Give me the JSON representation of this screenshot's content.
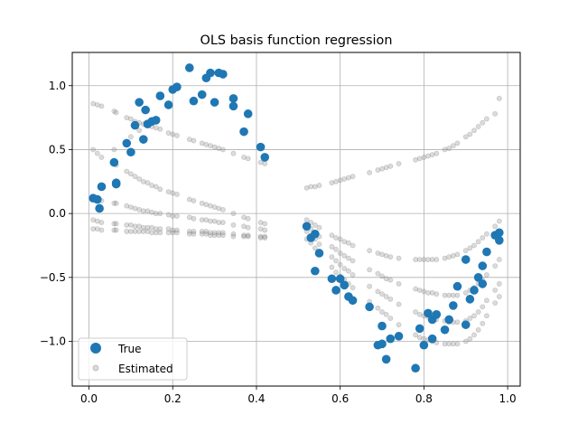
{
  "chart_data": {
    "type": "scatter",
    "title": "OLS basis function regression",
    "xlabel": "",
    "ylabel": "",
    "xlim": [
      -0.04,
      1.03
    ],
    "ylim": [
      -1.35,
      1.26
    ],
    "xticks": [
      0.0,
      0.2,
      0.4,
      0.6,
      0.8,
      1.0
    ],
    "yticks": [
      -1.0,
      -0.5,
      0.0,
      0.5,
      1.0
    ],
    "xtick_labels": [
      "0.0",
      "0.2",
      "0.4",
      "0.6",
      "0.8",
      "1.0"
    ],
    "ytick_labels": [
      "−1.0",
      "−0.5",
      "0.0",
      "0.5",
      "1.0"
    ],
    "grid": true,
    "legend_position": "lower-left",
    "series": [
      {
        "name": "True",
        "color": "#1f77b4",
        "marker": "circle-large",
        "x": [
          0.01,
          0.02,
          0.025,
          0.03,
          0.06,
          0.065,
          0.065,
          0.09,
          0.1,
          0.11,
          0.12,
          0.13,
          0.135,
          0.14,
          0.15,
          0.16,
          0.17,
          0.19,
          0.2,
          0.21,
          0.24,
          0.25,
          0.27,
          0.28,
          0.29,
          0.3,
          0.31,
          0.32,
          0.345,
          0.345,
          0.37,
          0.38,
          0.41,
          0.42,
          0.52,
          0.53,
          0.54,
          0.55,
          0.54,
          0.58,
          0.59,
          0.6,
          0.61,
          0.62,
          0.63,
          0.67,
          0.69,
          0.7,
          0.7,
          0.71,
          0.72,
          0.74,
          0.78,
          0.79,
          0.8,
          0.81,
          0.82,
          0.82,
          0.83,
          0.85,
          0.86,
          0.87,
          0.88,
          0.9,
          0.9,
          0.91,
          0.92,
          0.93,
          0.94,
          0.94,
          0.95,
          0.97,
          0.98,
          0.98
        ],
        "y": [
          0.12,
          0.11,
          0.04,
          0.21,
          0.4,
          0.23,
          0.24,
          0.55,
          0.48,
          0.69,
          0.87,
          0.58,
          0.81,
          0.7,
          0.72,
          0.73,
          0.92,
          0.85,
          0.97,
          0.99,
          1.14,
          0.88,
          0.93,
          1.06,
          1.1,
          0.87,
          1.1,
          1.09,
          0.84,
          0.9,
          0.64,
          0.78,
          0.52,
          0.44,
          -0.1,
          -0.19,
          -0.45,
          -0.31,
          -0.16,
          -0.51,
          -0.6,
          -0.51,
          -0.56,
          -0.65,
          -0.68,
          -0.73,
          -1.03,
          -0.88,
          -1.02,
          -1.14,
          -0.98,
          -0.96,
          -1.21,
          -0.9,
          -1.03,
          -0.78,
          -0.98,
          -0.83,
          -0.79,
          -0.91,
          -0.83,
          -0.72,
          -0.57,
          -0.87,
          -0.36,
          -0.67,
          -0.6,
          -0.5,
          -0.41,
          -0.55,
          -0.3,
          -0.17,
          -0.21,
          -0.15
        ]
      },
      {
        "name": "Estimated",
        "color": "#888888",
        "marker": "circle-small",
        "x": [
          0.01,
          0.01,
          0.01,
          0.01,
          0.01,
          0.02,
          0.02,
          0.02,
          0.02,
          0.02,
          0.03,
          0.03,
          0.03,
          0.03,
          0.03,
          0.03,
          0.06,
          0.06,
          0.06,
          0.06,
          0.06,
          0.06,
          0.065,
          0.065,
          0.065,
          0.065,
          0.065,
          0.09,
          0.09,
          0.09,
          0.09,
          0.09,
          0.1,
          0.1,
          0.1,
          0.1,
          0.1,
          0.1,
          0.11,
          0.11,
          0.11,
          0.11,
          0.11,
          0.12,
          0.12,
          0.12,
          0.12,
          0.12,
          0.12,
          0.13,
          0.13,
          0.13,
          0.13,
          0.13,
          0.14,
          0.14,
          0.14,
          0.14,
          0.14,
          0.15,
          0.15,
          0.15,
          0.15,
          0.15,
          0.16,
          0.16,
          0.16,
          0.16,
          0.16,
          0.17,
          0.17,
          0.17,
          0.17,
          0.17,
          0.19,
          0.19,
          0.19,
          0.19,
          0.19,
          0.2,
          0.2,
          0.2,
          0.2,
          0.2,
          0.21,
          0.21,
          0.21,
          0.21,
          0.21,
          0.24,
          0.24,
          0.24,
          0.24,
          0.24,
          0.25,
          0.25,
          0.25,
          0.25,
          0.25,
          0.27,
          0.27,
          0.27,
          0.27,
          0.27,
          0.28,
          0.28,
          0.28,
          0.28,
          0.28,
          0.29,
          0.29,
          0.29,
          0.29,
          0.29,
          0.3,
          0.3,
          0.3,
          0.3,
          0.3,
          0.31,
          0.31,
          0.31,
          0.31,
          0.31,
          0.32,
          0.32,
          0.32,
          0.32,
          0.32,
          0.345,
          0.345,
          0.345,
          0.345,
          0.345,
          0.37,
          0.37,
          0.37,
          0.37,
          0.37,
          0.38,
          0.38,
          0.38,
          0.38,
          0.38,
          0.41,
          0.41,
          0.41,
          0.41,
          0.41,
          0.42,
          0.42,
          0.42,
          0.42,
          0.42,
          0.52,
          0.52,
          0.52,
          0.52,
          0.52,
          0.53,
          0.53,
          0.53,
          0.53,
          0.53,
          0.54,
          0.54,
          0.54,
          0.54,
          0.54,
          0.55,
          0.55,
          0.55,
          0.55,
          0.55,
          0.58,
          0.58,
          0.58,
          0.58,
          0.58,
          0.59,
          0.59,
          0.59,
          0.59,
          0.59,
          0.6,
          0.6,
          0.6,
          0.6,
          0.6,
          0.61,
          0.61,
          0.61,
          0.61,
          0.61,
          0.62,
          0.62,
          0.62,
          0.62,
          0.62,
          0.63,
          0.63,
          0.63,
          0.63,
          0.63,
          0.67,
          0.67,
          0.67,
          0.67,
          0.67,
          0.69,
          0.69,
          0.69,
          0.69,
          0.69,
          0.7,
          0.7,
          0.7,
          0.7,
          0.7,
          0.71,
          0.71,
          0.71,
          0.71,
          0.71,
          0.72,
          0.72,
          0.72,
          0.72,
          0.72,
          0.74,
          0.74,
          0.74,
          0.74,
          0.74,
          0.78,
          0.78,
          0.78,
          0.78,
          0.78,
          0.79,
          0.79,
          0.79,
          0.79,
          0.79,
          0.8,
          0.8,
          0.8,
          0.8,
          0.8,
          0.81,
          0.81,
          0.81,
          0.81,
          0.81,
          0.82,
          0.82,
          0.82,
          0.82,
          0.82,
          0.83,
          0.83,
          0.83,
          0.83,
          0.83,
          0.85,
          0.85,
          0.85,
          0.85,
          0.85,
          0.86,
          0.86,
          0.86,
          0.86,
          0.86,
          0.87,
          0.87,
          0.87,
          0.87,
          0.87,
          0.88,
          0.88,
          0.88,
          0.88,
          0.88,
          0.9,
          0.9,
          0.9,
          0.9,
          0.9,
          0.91,
          0.91,
          0.91,
          0.91,
          0.91,
          0.92,
          0.92,
          0.92,
          0.92,
          0.92,
          0.93,
          0.93,
          0.93,
          0.93,
          0.93,
          0.94,
          0.94,
          0.94,
          0.94,
          0.94,
          0.95,
          0.95,
          0.95,
          0.95,
          0.95,
          0.97,
          0.97,
          0.97,
          0.97,
          0.97,
          0.98,
          0.98,
          0.98,
          0.98,
          0.98
        ],
        "y": [
          0.86,
          0.5,
          0.12,
          -0.05,
          -0.12,
          0.85,
          0.47,
          0.11,
          -0.06,
          -0.12,
          0.84,
          0.44,
          0.1,
          -0.07,
          -0.13,
          0.2,
          0.8,
          0.39,
          0.08,
          -0.08,
          -0.13,
          0.5,
          0.79,
          0.38,
          0.08,
          -0.08,
          -0.13,
          0.75,
          0.33,
          0.06,
          -0.09,
          -0.14,
          0.74,
          0.31,
          0.05,
          -0.09,
          -0.14,
          0.6,
          0.72,
          0.29,
          0.04,
          -0.1,
          -0.14,
          0.71,
          0.27,
          0.03,
          -0.1,
          -0.14,
          0.65,
          0.7,
          0.25,
          0.02,
          -0.11,
          -0.14,
          0.69,
          0.24,
          0.02,
          -0.11,
          -0.14,
          0.68,
          0.22,
          0.01,
          -0.11,
          -0.15,
          0.67,
          0.21,
          0.0,
          -0.12,
          -0.15,
          0.66,
          0.19,
          0.0,
          -0.12,
          -0.15,
          0.63,
          0.17,
          -0.01,
          -0.12,
          -0.15,
          0.62,
          0.16,
          -0.02,
          -0.13,
          -0.15,
          0.61,
          0.15,
          -0.02,
          -0.13,
          -0.15,
          0.58,
          0.11,
          -0.03,
          -0.14,
          -0.16,
          0.57,
          0.1,
          -0.04,
          -0.14,
          -0.16,
          0.55,
          0.08,
          -0.05,
          -0.14,
          -0.16,
          0.54,
          0.07,
          -0.05,
          -0.14,
          -0.16,
          0.53,
          0.06,
          -0.06,
          -0.15,
          -0.17,
          0.52,
          0.05,
          -0.06,
          -0.15,
          -0.17,
          0.51,
          0.04,
          -0.07,
          -0.15,
          -0.17,
          0.5,
          0.03,
          -0.07,
          -0.15,
          -0.17,
          0.47,
          0.0,
          -0.09,
          -0.16,
          -0.18,
          0.44,
          -0.03,
          -0.1,
          -0.17,
          -0.18,
          0.43,
          -0.04,
          -0.11,
          -0.17,
          -0.18,
          0.4,
          -0.07,
          -0.12,
          -0.18,
          -0.19,
          0.39,
          -0.08,
          -0.13,
          -0.18,
          -0.19,
          0.2,
          -0.05,
          -0.1,
          -0.14,
          -0.2,
          0.21,
          -0.07,
          -0.12,
          -0.17,
          -0.23,
          0.21,
          -0.09,
          -0.15,
          -0.2,
          -0.27,
          0.22,
          -0.11,
          -0.18,
          -0.24,
          -0.31,
          0.24,
          -0.17,
          -0.26,
          -0.34,
          -0.42,
          0.25,
          -0.19,
          -0.28,
          -0.37,
          -0.46,
          0.26,
          -0.2,
          -0.31,
          -0.4,
          -0.49,
          0.27,
          -0.22,
          -0.33,
          -0.43,
          -0.52,
          0.28,
          -0.23,
          -0.35,
          -0.45,
          -0.55,
          0.29,
          -0.25,
          -0.37,
          -0.48,
          -0.58,
          0.32,
          -0.29,
          -0.44,
          -0.57,
          -0.69,
          0.34,
          -0.31,
          -0.47,
          -0.61,
          -0.74,
          0.35,
          -0.32,
          -0.49,
          -0.63,
          -0.77,
          0.36,
          -0.33,
          -0.51,
          -0.65,
          -0.79,
          0.37,
          -0.34,
          -0.52,
          -0.67,
          -0.82,
          0.39,
          -0.35,
          -0.55,
          -0.71,
          -0.87,
          0.42,
          -0.36,
          -0.59,
          -0.77,
          -0.95,
          0.43,
          -0.36,
          -0.6,
          -0.79,
          -0.97,
          0.44,
          -0.36,
          -0.61,
          -0.8,
          -0.98,
          0.45,
          -0.36,
          -0.62,
          -0.81,
          -0.99,
          0.46,
          -0.36,
          -0.62,
          -0.82,
          -1.0,
          0.47,
          -0.36,
          -0.63,
          -0.83,
          -1.01,
          0.5,
          -0.35,
          -0.64,
          -0.84,
          -1.02,
          0.51,
          -0.34,
          -0.64,
          -0.85,
          -1.02,
          0.53,
          -0.33,
          -0.64,
          -0.85,
          -1.02,
          0.55,
          -0.32,
          -0.64,
          -0.85,
          -1.02,
          0.6,
          -0.29,
          -0.62,
          -0.84,
          -1.0,
          0.62,
          -0.27,
          -0.6,
          -0.82,
          -0.98,
          0.65,
          -0.25,
          -0.58,
          -0.8,
          -0.95,
          0.68,
          -0.22,
          -0.55,
          -0.77,
          -0.91,
          0.71,
          -0.19,
          -0.52,
          -0.73,
          -0.86,
          0.74,
          -0.16,
          -0.48,
          -0.68,
          -0.8,
          0.78,
          -0.1,
          -0.41,
          -0.6,
          -0.7,
          0.9,
          -0.06,
          -0.36,
          -0.55,
          -0.65
        ]
      }
    ]
  }
}
